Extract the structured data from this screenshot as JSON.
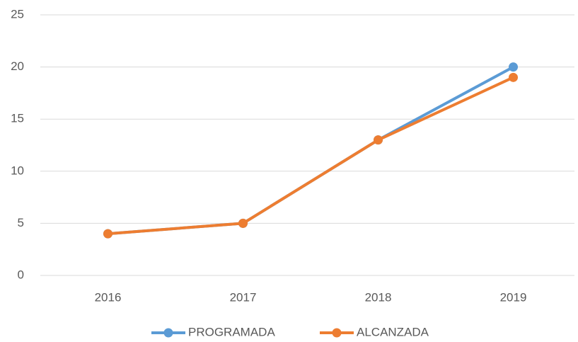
{
  "chart_data": {
    "type": "line",
    "categories": [
      "2016",
      "2017",
      "2018",
      "2019"
    ],
    "series": [
      {
        "name": "PROGRAMADA",
        "color": "#5b9bd5",
        "values": [
          4,
          5,
          13,
          20
        ]
      },
      {
        "name": "ALCANZADA",
        "color": "#ed7d31",
        "values": [
          4,
          5,
          13,
          19
        ]
      }
    ],
    "ylim": [
      0,
      25
    ],
    "yticks": [
      0,
      5,
      10,
      15,
      20,
      25
    ],
    "grid": true,
    "legend": "bottom"
  }
}
